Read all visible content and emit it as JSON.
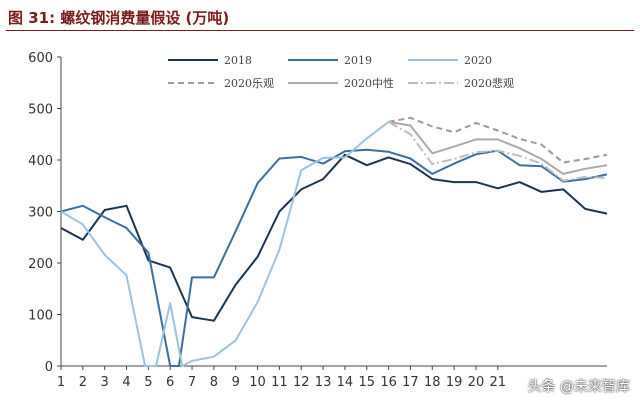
{
  "page": {
    "title": "图 31:  螺纹钢消费量假设 (万吨)",
    "watermark": "头条 @未来智库"
  },
  "chart_data": {
    "type": "line",
    "title": "图 31:  螺纹钢消费量假设 (万吨)",
    "xlabel": "",
    "ylabel": "",
    "x": [
      1,
      2,
      3,
      4,
      5,
      6,
      7,
      8,
      9,
      10,
      11,
      12,
      13,
      14,
      15,
      16,
      17,
      18,
      19,
      20,
      21,
      22,
      23,
      24,
      25,
      26
    ],
    "x_ticks": [
      1,
      2,
      3,
      4,
      5,
      6,
      7,
      8,
      9,
      10,
      11,
      12,
      13,
      14,
      15,
      16,
      17,
      18,
      19,
      20,
      21
    ],
    "xlim": [
      1,
      26
    ],
    "ylim": [
      0,
      600
    ],
    "y_ticks": [
      0,
      100,
      200,
      300,
      400,
      500,
      600
    ],
    "grid": false,
    "legend_position": "top",
    "series": [
      {
        "name": "2018",
        "color": "#1b3550",
        "dash": "",
        "x": [
          1,
          2,
          3,
          4,
          5,
          6,
          7,
          8,
          9,
          10,
          11,
          12,
          13,
          14,
          15,
          16,
          17,
          18,
          19,
          20,
          21,
          22,
          23,
          24,
          25,
          26
        ],
        "values": [
          268,
          245,
          303,
          311,
          205,
          191,
          95,
          88,
          158,
          212,
          300,
          343,
          363,
          410,
          390,
          405,
          392,
          363,
          357,
          357,
          345,
          357,
          338,
          343,
          305,
          296
        ]
      },
      {
        "name": "2019",
        "color": "#3a6f9e",
        "dash": "",
        "x": [
          1,
          2,
          3,
          4,
          5,
          6,
          6.4,
          7,
          8,
          9,
          10,
          11,
          12,
          13,
          14,
          15,
          16,
          17,
          18,
          19,
          20,
          21,
          22,
          23,
          24,
          25,
          26
        ],
        "values": [
          300,
          311,
          289,
          268,
          220,
          0,
          0,
          172,
          172,
          262,
          355,
          403,
          406,
          393,
          417,
          420,
          416,
          403,
          373,
          393,
          411,
          418,
          390,
          388,
          358,
          363,
          372
        ]
      },
      {
        "name": "2020",
        "color": "#9cc3de",
        "dash": "",
        "x": [
          1,
          2,
          3,
          4,
          4.85,
          5.35,
          6,
          6.55,
          7,
          8,
          9,
          10,
          11,
          12,
          13,
          14,
          15,
          16
        ],
        "values": [
          300,
          275,
          216,
          176,
          0,
          0,
          122,
          0,
          10,
          18,
          50,
          124,
          226,
          380,
          404,
          405,
          442,
          474
        ]
      },
      {
        "name": "2020乐观",
        "color": "#9a9a9a",
        "dash": "6,4",
        "x": [
          16,
          17,
          18,
          19,
          20,
          21,
          22,
          23,
          24,
          25,
          26
        ],
        "values": [
          474,
          482,
          465,
          454,
          472,
          457,
          441,
          430,
          395,
          402,
          410
        ]
      },
      {
        "name": "2020中性",
        "color": "#a9a9a9",
        "dash": "",
        "x": [
          16,
          17,
          18,
          19,
          20,
          21,
          22,
          23,
          24,
          25,
          26
        ],
        "values": [
          474,
          467,
          413,
          426,
          440,
          440,
          423,
          402,
          373,
          383,
          390
        ]
      },
      {
        "name": "2020悲观",
        "color": "#bdbdbd",
        "dash": "10,3,2,3",
        "x": [
          16,
          17,
          18,
          19,
          20,
          21,
          22,
          23,
          24,
          25,
          26
        ],
        "values": [
          474,
          450,
          392,
          402,
          415,
          418,
          408,
          393,
          360,
          367,
          365
        ]
      }
    ]
  }
}
